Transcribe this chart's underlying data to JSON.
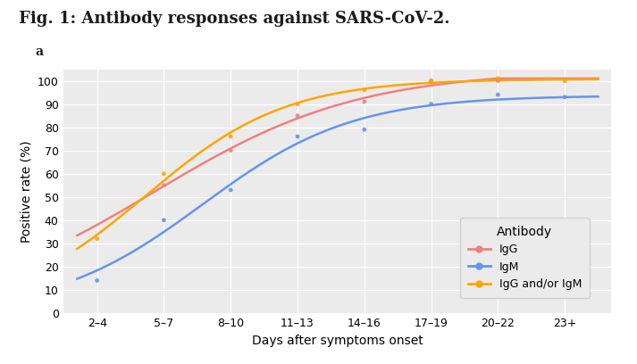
{
  "title": "Fig. 1: Antibody responses against SARS-CoV-2.",
  "panel_label": "a",
  "xlabel": "Days after symptoms onset",
  "ylabel": "Positive rate (%)",
  "legend_title": "Antibody",
  "xtick_labels": [
    "2–4",
    "5–7",
    "8–10",
    "11–13",
    "14–16",
    "17–19",
    "20–22",
    "23+"
  ],
  "x_positions": [
    1,
    2,
    3,
    4,
    5,
    6,
    7,
    8
  ],
  "igg_points": [
    55,
    70,
    85,
    91,
    100,
    100
  ],
  "igg_x": [
    2,
    3,
    4,
    5,
    6,
    7
  ],
  "igm_points": [
    14,
    40,
    53,
    76,
    79,
    90,
    94,
    93
  ],
  "igm_x": [
    1,
    2,
    3,
    4,
    5,
    6,
    7,
    8
  ],
  "iggor_points": [
    32,
    60,
    76,
    90,
    96,
    100,
    101,
    100
  ],
  "iggor_x": [
    1,
    2,
    3,
    4,
    5,
    6,
    7,
    8
  ],
  "color_igg": "#f08080",
  "color_igm": "#6495ed",
  "color_iggor": "#ffa500",
  "bg_color": "#ebebeb",
  "grid_color": "#ffffff",
  "ylim": [
    0,
    105
  ],
  "title_fontsize": 13,
  "axis_fontsize": 9,
  "legend_fontsize": 9
}
